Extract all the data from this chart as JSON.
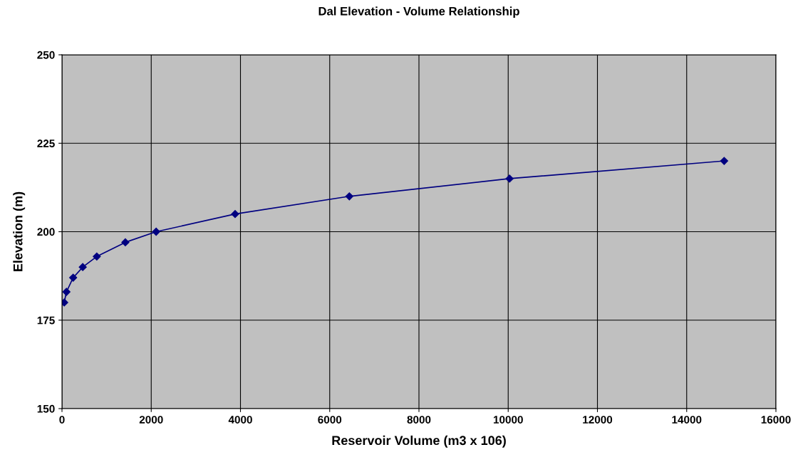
{
  "chart_data": {
    "type": "line",
    "title": "Dal Elevation - Volume Relationship",
    "xlabel": "Reservoir Volume (m3 x 106)",
    "ylabel": "Elevation (m)",
    "x": [
      50,
      100,
      250,
      465,
      780,
      1420,
      2110,
      3880,
      6440,
      10030,
      14840
    ],
    "series": [
      {
        "color": "#000080",
        "values": [
          180,
          183,
          187,
          190,
          193,
          197,
          200,
          205,
          210,
          215,
          220
        ]
      }
    ],
    "xlim": [
      0,
      16000
    ],
    "xticks": [
      0,
      2000,
      4000,
      6000,
      8000,
      10000,
      12000,
      14000,
      16000
    ],
    "ylim": [
      150,
      250
    ],
    "yticks": [
      150,
      175,
      200,
      225,
      250
    ],
    "grid": true,
    "marker": "diamond",
    "line_style": "solid"
  }
}
